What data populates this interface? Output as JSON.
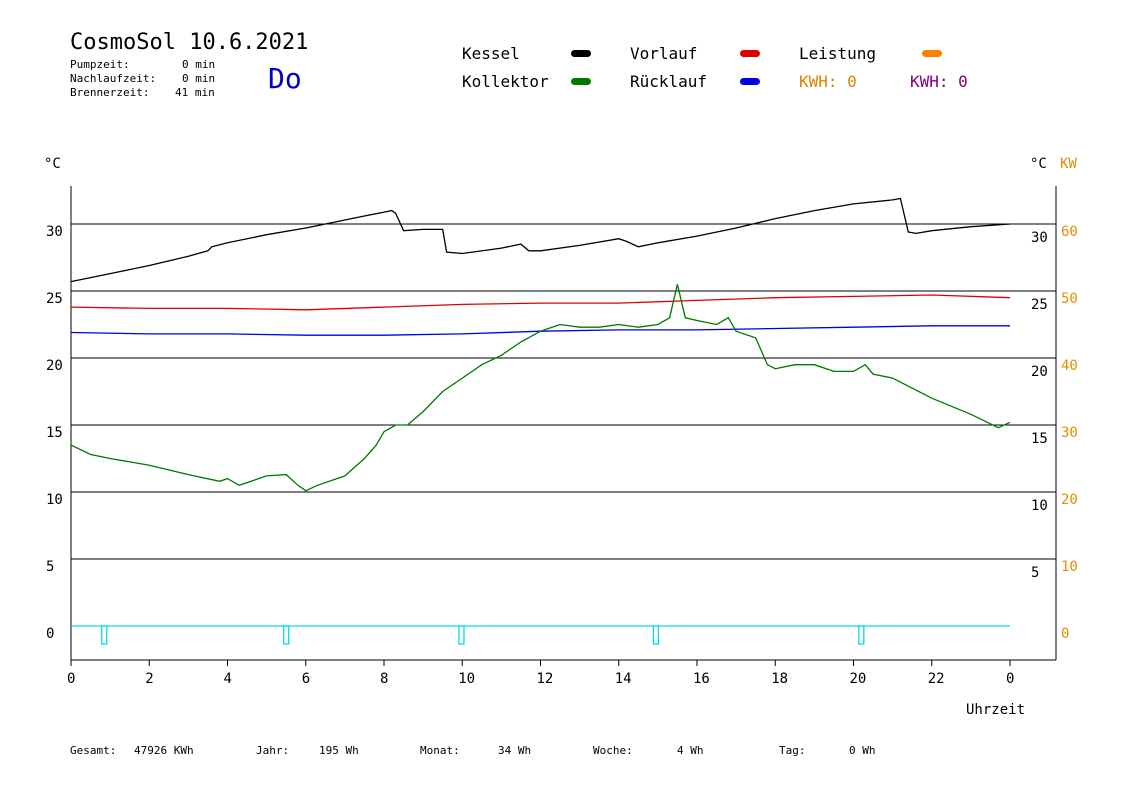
{
  "header": {
    "title": "CosmoSol 10.6.2021",
    "day": "Do",
    "pumpzeit_label": "Pumpzeit:",
    "pumpzeit_value": "0 min",
    "nachlauf_label": "Nachlaufzeit:",
    "nachlauf_value": "0 min",
    "brenner_label": "Brennerzeit:",
    "brenner_value": "41 min"
  },
  "legend": {
    "kessel": "Kessel",
    "vorlauf": "Vorlauf",
    "leistung": "Leistung",
    "kollektor": "Kollektor",
    "ruecklauf": "Rücklauf",
    "kwh1": "KWH: 0",
    "kwh2": "KWH: 0"
  },
  "colors": {
    "kessel": "#000000",
    "vorlauf": "#e00000",
    "leistung": "#ff8000",
    "kollektor": "#007800",
    "ruecklauf": "#0000e0",
    "kwh1": "#e08000",
    "kwh2": "#800080",
    "pump": "#00e0e0",
    "orange_axis": "#e09000"
  },
  "axes": {
    "left_unit": "°C",
    "right_unit_c": "°C",
    "right_unit_kw": "KW",
    "xlabel": "Uhrzeit"
  },
  "footer": {
    "gesamt_label": "Gesamt:",
    "gesamt_value": "47926 KWh",
    "jahr_label": "Jahr:",
    "jahr_value": "195 Wh",
    "monat_label": "Monat:",
    "monat_value": "34 Wh",
    "woche_label": "Woche:",
    "woche_value": "4 Wh",
    "tag_label": "Tag:",
    "tag_value": "0 Wh"
  },
  "chart_data": {
    "type": "line",
    "xlabel": "Uhrzeit",
    "ylabel": "°C",
    "xlim": [
      0,
      24
    ],
    "ylim": [
      -2.5,
      32.5
    ],
    "x_ticks": [
      "0",
      "2",
      "4",
      "6",
      "8",
      "10",
      "12",
      "14",
      "16",
      "18",
      "20",
      "22",
      "0"
    ],
    "y_ticks_left": [
      "0",
      "5",
      "10",
      "15",
      "20",
      "25",
      "30"
    ],
    "y_ticks_right_c": [
      "5",
      "10",
      "15",
      "20",
      "25",
      "30"
    ],
    "y_ticks_right_kw": [
      "0",
      "10",
      "20",
      "30",
      "40",
      "50",
      "60"
    ],
    "grid": true,
    "series": [
      {
        "name": "Kessel",
        "x": [
          0,
          1,
          2,
          3,
          3.5,
          3.6,
          4,
          5,
          6,
          7,
          7.5,
          8.2,
          8.3,
          8.5,
          9.0,
          9.5,
          9.6,
          10,
          11,
          11.5,
          11.7,
          12,
          13,
          14,
          14.2,
          14.5,
          15,
          16,
          17,
          18,
          19,
          20,
          21,
          21.2,
          21.4,
          21.6,
          22,
          23,
          24
        ],
        "y": [
          25.7,
          26.3,
          26.9,
          27.6,
          28.0,
          28.3,
          28.6,
          29.2,
          29.7,
          30.3,
          30.6,
          31.0,
          30.8,
          29.5,
          29.6,
          29.6,
          27.9,
          27.8,
          28.2,
          28.5,
          28.0,
          28.0,
          28.4,
          28.9,
          28.7,
          28.3,
          28.6,
          29.1,
          29.7,
          30.4,
          31.0,
          31.5,
          31.8,
          31.9,
          29.4,
          29.3,
          29.5,
          29.8,
          30.0
        ]
      },
      {
        "name": "Vorlauf",
        "x": [
          0,
          2,
          4,
          6,
          8,
          10,
          12,
          14,
          16,
          18,
          20,
          22,
          24
        ],
        "y": [
          23.8,
          23.7,
          23.7,
          23.6,
          23.8,
          24.0,
          24.1,
          24.1,
          24.3,
          24.5,
          24.6,
          24.7,
          24.5
        ]
      },
      {
        "name": "Rücklauf",
        "x": [
          0,
          2,
          4,
          6,
          8,
          10,
          12,
          14,
          16,
          18,
          20,
          22,
          24
        ],
        "y": [
          21.9,
          21.8,
          21.8,
          21.7,
          21.7,
          21.8,
          22.0,
          22.1,
          22.1,
          22.2,
          22.3,
          22.4,
          22.4
        ]
      },
      {
        "name": "Kollektor",
        "x": [
          0,
          0.5,
          1,
          2,
          3,
          3.8,
          4,
          4.3,
          5,
          5.5,
          5.8,
          6,
          6.3,
          7,
          7.5,
          7.8,
          8,
          8.3,
          8.6,
          9,
          9.5,
          10,
          10.5,
          11,
          11.5,
          12,
          12.5,
          13,
          13.5,
          14,
          14.5,
          15,
          15.3,
          15.5,
          15.7,
          16,
          16.5,
          16.8,
          17,
          17.5,
          17.8,
          18,
          18.5,
          19,
          19.5,
          20,
          20.3,
          20.5,
          21,
          22,
          23,
          23.7,
          24
        ],
        "y": [
          13.5,
          12.8,
          12.5,
          12.0,
          11.3,
          10.8,
          11.0,
          10.5,
          11.2,
          11.3,
          10.5,
          10.1,
          10.5,
          11.2,
          12.5,
          13.5,
          14.5,
          15.0,
          15.0,
          16.0,
          17.5,
          18.5,
          19.5,
          20.2,
          21.2,
          22.0,
          22.5,
          22.3,
          22.3,
          22.5,
          22.3,
          22.5,
          23.0,
          25.5,
          23.0,
          22.8,
          22.5,
          23.0,
          22.0,
          21.5,
          19.5,
          19.2,
          19.5,
          19.5,
          19.0,
          19.0,
          19.5,
          18.8,
          18.5,
          17.0,
          15.8,
          14.8,
          15.2
        ]
      },
      {
        "name": "Pumpe",
        "x": [
          0,
          24
        ],
        "y": [
          0,
          0
        ]
      }
    ],
    "pump_markers_x": [
      0.85,
      5.5,
      9.98,
      14.95,
      20.2
    ]
  }
}
